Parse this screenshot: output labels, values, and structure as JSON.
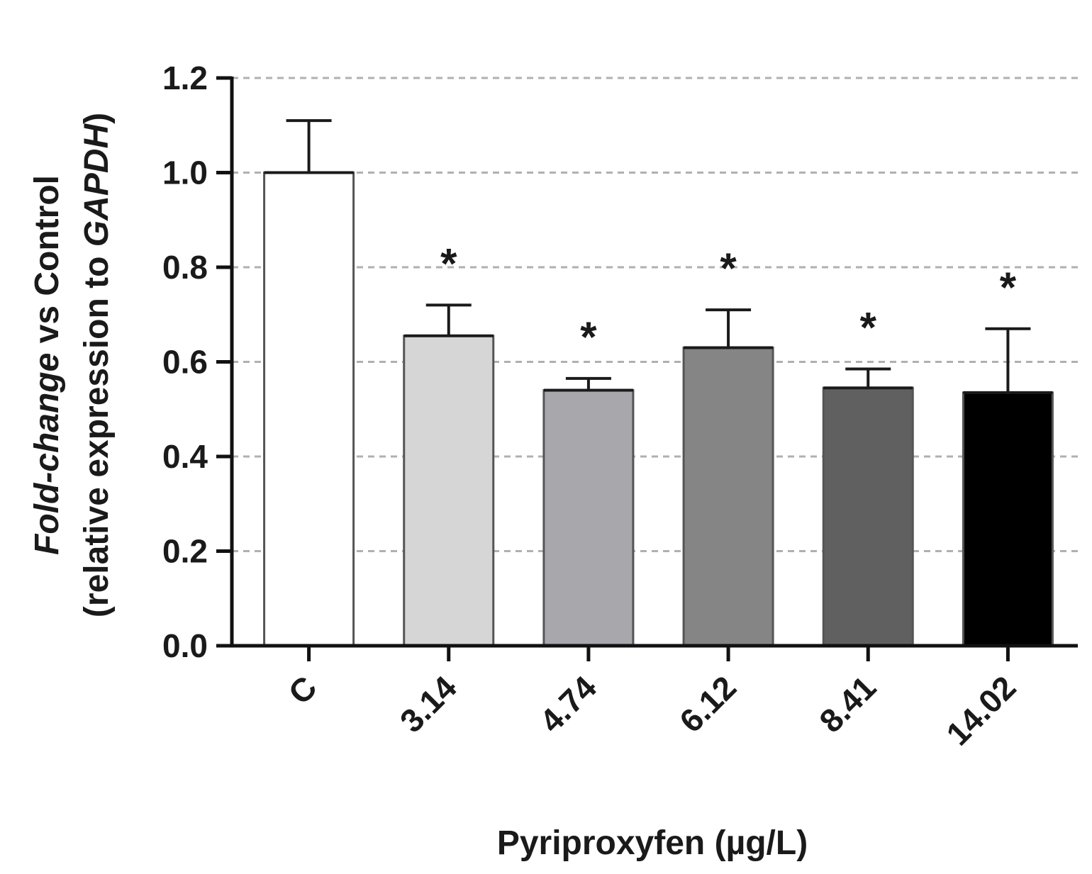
{
  "chart_data": {
    "type": "bar",
    "categories": [
      "C",
      "3.14",
      "4.74",
      "6.12",
      "8.41",
      "14.02"
    ],
    "values": [
      1.0,
      0.655,
      0.54,
      0.63,
      0.545,
      0.535
    ],
    "errors": [
      0.11,
      0.065,
      0.025,
      0.08,
      0.04,
      0.135
    ],
    "significance": [
      "",
      "*",
      "*",
      "*",
      "*",
      "*"
    ],
    "colors": [
      "#ffffff",
      "#d6d6d6",
      "#a8a7ac",
      "#858585",
      "#606060",
      "#000000"
    ],
    "xlabel": "Pyriproxyfen (µg/L)",
    "ylabel_line1_italic": "Fold-change",
    "ylabel_line1_rest": " vs Control",
    "ylabel_line2_prefix": "(relative expression to ",
    "ylabel_line2_italic": "GAPDH",
    "ylabel_line2_suffix": ")",
    "ylim": [
      0,
      1.2
    ],
    "yticks": [
      "0.0",
      "0.2",
      "0.4",
      "0.6",
      "0.8",
      "1.0",
      "1.2"
    ],
    "grid": true
  }
}
